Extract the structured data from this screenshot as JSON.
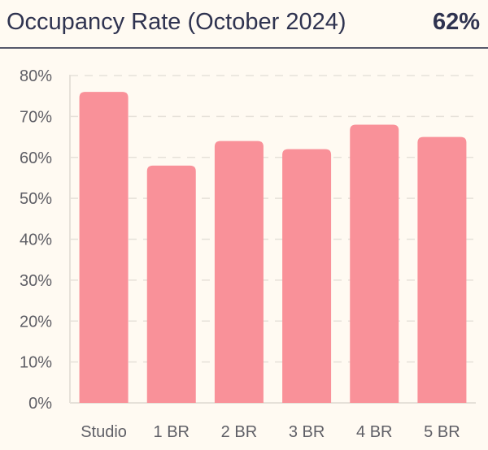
{
  "header": {
    "title": "Occupancy Rate (October 2024)",
    "kpi": "62%"
  },
  "chart_data": {
    "type": "bar",
    "title": "Occupancy Rate (October 2024)",
    "categories": [
      "Studio",
      "1 BR",
      "2 BR",
      "3 BR",
      "4 BR",
      "5 BR"
    ],
    "values": [
      76,
      58,
      64,
      62,
      68,
      65
    ],
    "ylim": [
      0,
      80
    ],
    "yticks": [
      "0%",
      "10%",
      "20%",
      "30%",
      "40%",
      "50%",
      "60%",
      "70%",
      "80%"
    ],
    "grid": true,
    "bar_color": "#f99199"
  }
}
